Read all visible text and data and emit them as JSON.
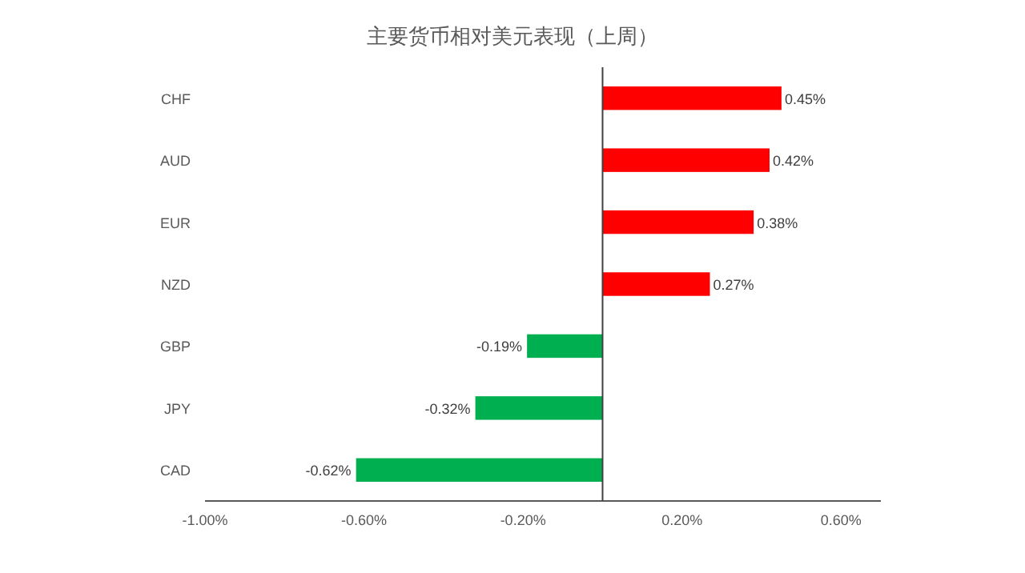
{
  "chart_data": {
    "type": "bar",
    "orientation": "horizontal",
    "title": "主要货币相对美元表现（上周）",
    "categories": [
      "CHF",
      "AUD",
      "EUR",
      "NZD",
      "GBP",
      "JPY",
      "CAD"
    ],
    "values": [
      0.45,
      0.42,
      0.38,
      0.27,
      -0.19,
      -0.32,
      -0.62
    ],
    "colors": [
      "#ff0000",
      "#ff0000",
      "#ff0000",
      "#ff0000",
      "#00b050",
      "#00b050",
      "#00b050"
    ],
    "value_labels": [
      "0.45%",
      "0.42%",
      "0.38%",
      "0.27%",
      "-0.19%",
      "-0.32%",
      "-0.62%"
    ],
    "xlim": [
      -1,
      0.7
    ],
    "xticks": [
      {
        "value": -1,
        "label": "-1.00%"
      },
      {
        "value": -0.6,
        "label": "-0.60%"
      },
      {
        "value": -0.2,
        "label": "-0.20%"
      },
      {
        "value": 0.2,
        "label": "0.20%"
      },
      {
        "value": 0.6,
        "label": "0.60%"
      }
    ]
  }
}
